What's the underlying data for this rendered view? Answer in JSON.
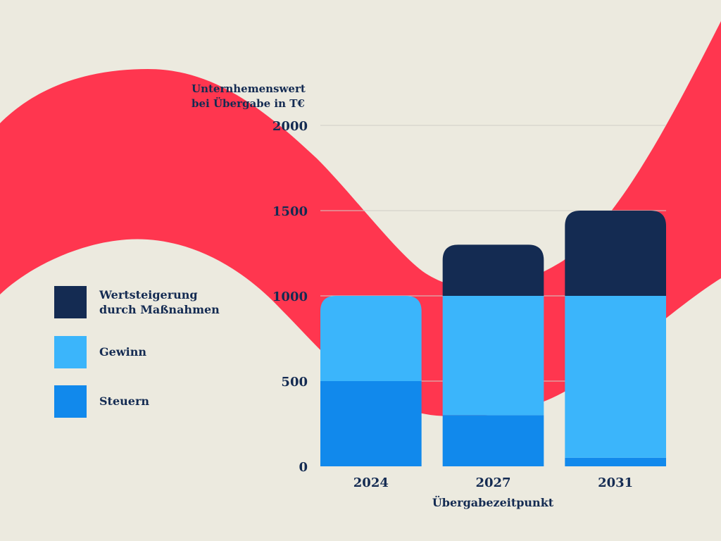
{
  "chart_data": {
    "type": "bar",
    "stacked": true,
    "categories": [
      "2024",
      "2027",
      "2031"
    ],
    "series": [
      {
        "name": "Steuern",
        "values": [
          500,
          300,
          50
        ],
        "color": "#1189EC"
      },
      {
        "name": "Gewinn",
        "values": [
          500,
          700,
          950
        ],
        "color": "#3BB5FB"
      },
      {
        "name": "Wertsteigerung durch Maßnahmen",
        "values": [
          0,
          300,
          500
        ],
        "color": "#142B52"
      }
    ],
    "ylim": [
      0,
      2000
    ],
    "yticks": [
      "0",
      "500",
      "1000",
      "1500",
      "2000"
    ],
    "ylabel_lines": [
      "Unternhemenswert",
      "bei Übergabe in T€"
    ],
    "xlabel": "Übergabezeitpunkt",
    "grid": true,
    "legend_position": "left",
    "legend": [
      {
        "lines": [
          "Wertsteigerung",
          "durch Maßnahmen"
        ],
        "color": "#142B52"
      },
      {
        "lines": [
          "Gewinn"
        ],
        "color": "#3BB5FB"
      },
      {
        "lines": [
          "Steuern"
        ],
        "color": "#1189EC"
      }
    ]
  },
  "colors": {
    "background": "#ECEADF",
    "wave": "#FF364F",
    "text": "#142B52",
    "grid": "#CFCFC7"
  }
}
